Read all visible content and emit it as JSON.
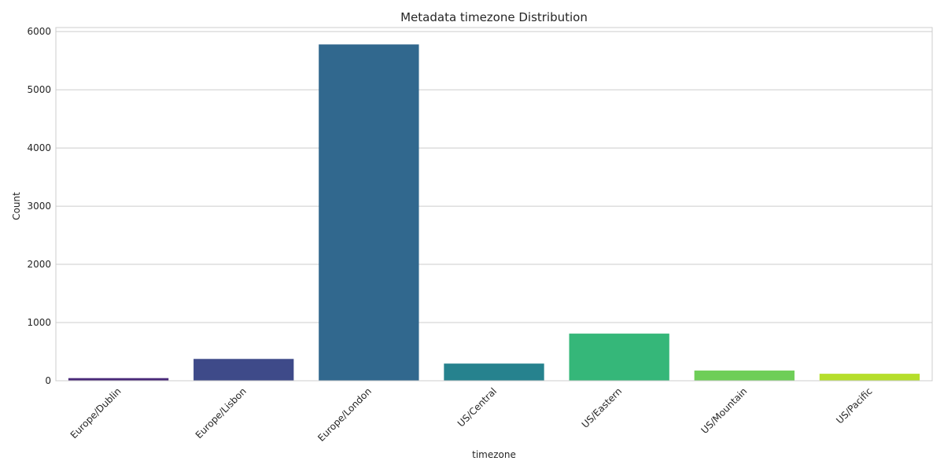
{
  "chart_data": {
    "type": "bar",
    "title": "Metadata timezone Distribution",
    "xlabel": "timezone",
    "ylabel": "Count",
    "categories": [
      "Europe/Dublin",
      "Europe/Lisbon",
      "Europe/London",
      "US/Central",
      "US/Eastern",
      "US/Mountain",
      "US/Pacific"
    ],
    "values": [
      45,
      375,
      5780,
      295,
      810,
      175,
      120
    ],
    "colors": [
      "#482878",
      "#3e4a89",
      "#31688e",
      "#26828e",
      "#35b779",
      "#6ece58",
      "#b5de2b"
    ],
    "ylim": [
      0,
      6070
    ],
    "yticks": [
      0,
      1000,
      2000,
      3000,
      4000,
      5000,
      6000
    ],
    "grid": true,
    "legend": "none"
  }
}
